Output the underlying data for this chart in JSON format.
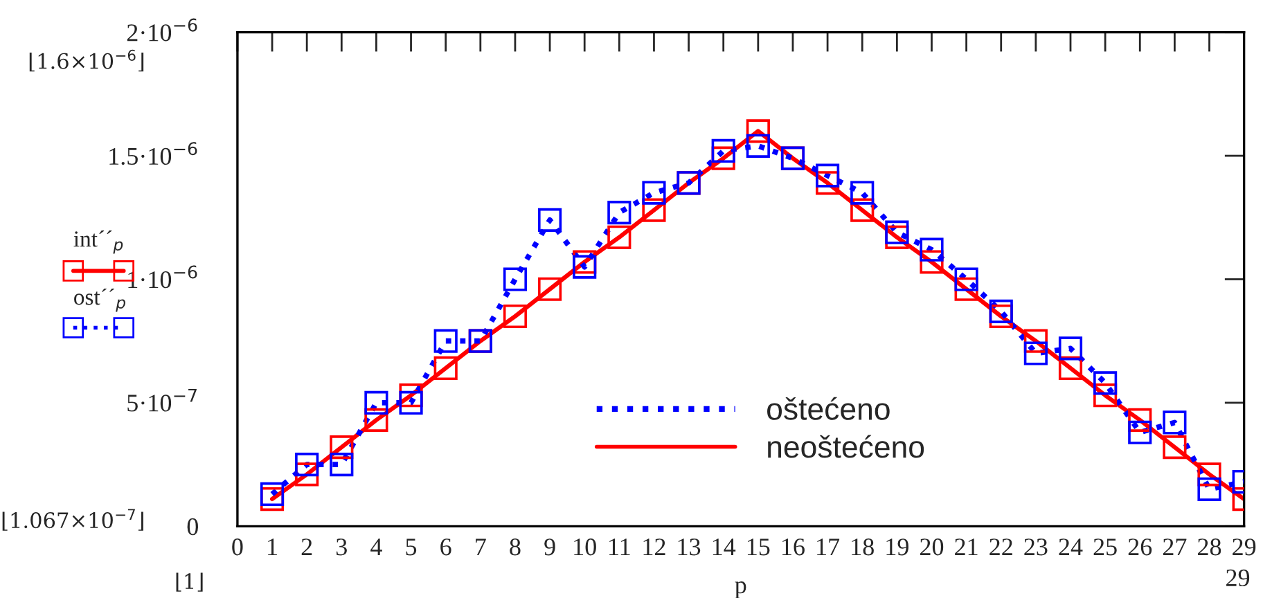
{
  "chart_data": {
    "type": "line",
    "x": [
      1,
      2,
      3,
      4,
      5,
      6,
      7,
      8,
      9,
      10,
      11,
      12,
      13,
      14,
      15,
      16,
      17,
      18,
      19,
      20,
      21,
      22,
      23,
      24,
      25,
      26,
      27,
      28,
      29
    ],
    "series": [
      {
        "name": "oštećeno",
        "color": "#0000ff",
        "line_style": "dotted",
        "marker": "square",
        "values": [
          1.3e-07,
          2.5e-07,
          2.5e-07,
          5e-07,
          5e-07,
          7.5e-07,
          7.5e-07,
          1e-06,
          1.24e-06,
          1.05e-06,
          1.27e-06,
          1.35e-06,
          1.39e-06,
          1.52e-06,
          1.54e-06,
          1.49e-06,
          1.42e-06,
          1.35e-06,
          1.19e-06,
          1.12e-06,
          1e-06,
          8.7e-07,
          7e-07,
          7.2e-07,
          5.8e-07,
          3.8e-07,
          4.2e-07,
          1.5e-07,
          1.8e-07
        ]
      },
      {
        "name": "neoštećeno",
        "color": "#ff0000",
        "line_style": "solid",
        "marker": "square",
        "values": [
          1.1e-07,
          2.1e-07,
          3.2e-07,
          4.3e-07,
          5.3e-07,
          6.4e-07,
          7.5e-07,
          8.5e-07,
          9.6e-07,
          1.07e-06,
          1.17e-06,
          1.28e-06,
          1.39e-06,
          1.49e-06,
          1.6e-06,
          1.49e-06,
          1.39e-06,
          1.28e-06,
          1.17e-06,
          1.07e-06,
          9.6e-07,
          8.5e-07,
          7.5e-07,
          6.4e-07,
          5.3e-07,
          4.3e-07,
          3.2e-07,
          2.1e-07,
          1.1e-07
        ]
      }
    ],
    "xlabel": "p",
    "xlim": [
      0,
      29
    ],
    "xticks": [
      0,
      1,
      2,
      3,
      4,
      5,
      6,
      7,
      8,
      9,
      10,
      11,
      12,
      13,
      14,
      15,
      16,
      17,
      18,
      19,
      20,
      21,
      22,
      23,
      24,
      25,
      26,
      27,
      28,
      29
    ],
    "ylim": [
      0,
      2e-06
    ],
    "yticks": [
      0,
      {
        "value": 5e-07,
        "label": "5·10$^{−7}$"
      },
      {
        "value": 1e-06,
        "label": "1·10$^{−6}$"
      },
      {
        "value": 1.5e-06,
        "label": "1.5·10$^{−6}$"
      },
      {
        "value": 2e-06,
        "label": "2·10$^{−6}$"
      }
    ],
    "annotations": [
      "int´´$_{p}$",
      "ost´´$_{p}$",
      "⌊1.6×10$^{−6}$⌋",
      "⌊1.067×10$^{−7}$⌋",
      "⌊1⌋",
      "29"
    ],
    "legend": "bottom",
    "grid": false
  }
}
